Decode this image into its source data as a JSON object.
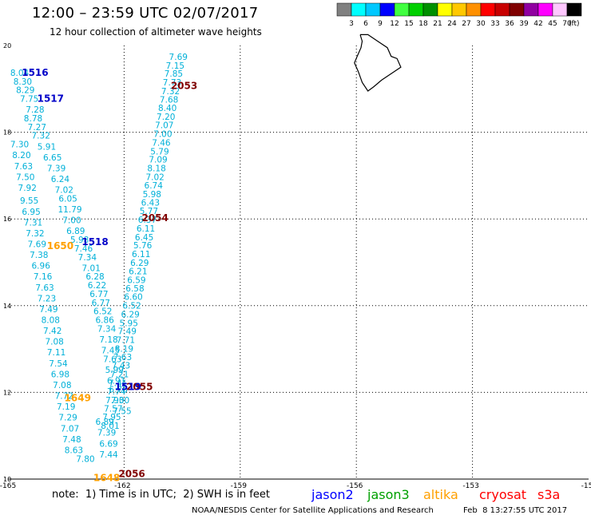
{
  "header": {
    "title": "12:00 – 23:59 UTC 02/07/2017",
    "subtitle": "12 hour collection of altimeter wave heights"
  },
  "legend": {
    "ticks": [
      "3",
      "6",
      "9",
      "12",
      "15",
      "18",
      "21",
      "24",
      "27",
      "30",
      "33",
      "36",
      "39",
      "42",
      "45",
      "70"
    ],
    "unit": "(ft)",
    "colors": [
      "#808080",
      "#00ffff",
      "#00c8ff",
      "#0000ff",
      "#40ff40",
      "#00d000",
      "#009000",
      "#ffff00",
      "#ffc800",
      "#ff9000",
      "#ff0000",
      "#c80000",
      "#800000",
      "#9000a0",
      "#ff00ff",
      "#ffc8ff",
      "#000000"
    ]
  },
  "axes": {
    "x_ticks": [
      "-165",
      "-162",
      "-159",
      "-156",
      "-153",
      "-15"
    ],
    "y_ticks": [
      "20",
      "18",
      "16",
      "14",
      "12",
      "10"
    ]
  },
  "map_data": {
    "lon_range": [
      -165,
      -150
    ],
    "lat_range": [
      10,
      20
    ],
    "track_color": "#00b0d8",
    "tracks": [
      {
        "name": "track-a",
        "points": [
          [
            -160.6,
            19.67,
            "7.69"
          ],
          [
            -160.68,
            19.47,
            "7.15"
          ],
          [
            -160.72,
            19.28,
            "7.85"
          ],
          [
            -160.76,
            19.08,
            "7.73"
          ],
          [
            -160.8,
            18.88,
            "7.32"
          ],
          [
            -160.84,
            18.68,
            "7.68"
          ],
          [
            -160.88,
            18.49,
            "8.40"
          ],
          [
            -160.92,
            18.29,
            "7.20"
          ],
          [
            -160.96,
            18.09,
            "7.07"
          ],
          [
            -161.0,
            17.89,
            "7.00"
          ],
          [
            -161.04,
            17.69,
            "7.46"
          ],
          [
            -161.08,
            17.49,
            "5.79"
          ],
          [
            -161.12,
            17.3,
            "7.09"
          ],
          [
            -161.16,
            17.1,
            "8.18"
          ],
          [
            -161.2,
            16.9,
            "7.02"
          ],
          [
            -161.24,
            16.7,
            "6.74"
          ],
          [
            -161.28,
            16.5,
            "5.98"
          ],
          [
            -161.32,
            16.31,
            "6.43"
          ],
          [
            -161.36,
            16.11,
            "5.77"
          ],
          [
            -161.4,
            15.91,
            "6.37"
          ],
          [
            -161.44,
            15.71,
            "6.11"
          ],
          [
            -161.48,
            15.51,
            "6.45"
          ],
          [
            -161.52,
            15.32,
            "5.76"
          ],
          [
            -161.56,
            15.12,
            "6.11"
          ],
          [
            -161.6,
            14.92,
            "6.29"
          ],
          [
            -161.64,
            14.72,
            "6.21"
          ],
          [
            -161.68,
            14.52,
            "6.59"
          ],
          [
            -161.72,
            14.33,
            "6.58"
          ],
          [
            -161.76,
            14.13,
            "6.60"
          ],
          [
            -161.8,
            13.93,
            "6.52"
          ],
          [
            -161.84,
            13.73,
            "6.29"
          ],
          [
            -161.88,
            13.53,
            "5.95"
          ],
          [
            -161.92,
            13.34,
            "7.49"
          ],
          [
            -161.96,
            13.14,
            "7.71"
          ],
          [
            -162.0,
            12.94,
            "8.19"
          ],
          [
            -162.04,
            12.74,
            "7.63"
          ],
          [
            -162.08,
            12.55,
            "7.43"
          ],
          [
            -162.12,
            12.35,
            "7.21"
          ],
          [
            -162.16,
            12.15,
            "7.41"
          ],
          [
            -162.2,
            11.95,
            "7.74"
          ],
          [
            -162.24,
            11.75,
            "7.93"
          ],
          [
            -162.28,
            11.56,
            "7.57"
          ],
          [
            -162.32,
            11.36,
            "7.95"
          ],
          [
            -162.36,
            11.16,
            "8.01"
          ]
        ]
      },
      {
        "name": "track-b",
        "points": [
          [
            -164.7,
            19.3,
            "8.04"
          ],
          [
            -164.62,
            19.1,
            "8.30"
          ],
          [
            -164.55,
            18.9,
            "8.29"
          ],
          [
            -164.45,
            18.7,
            "7.75"
          ],
          [
            -164.3,
            18.45,
            "7.28"
          ],
          [
            -164.35,
            18.25,
            "8.78"
          ],
          [
            -164.25,
            18.05,
            "7.27"
          ],
          [
            -164.15,
            17.85,
            "7.32"
          ],
          [
            -164.7,
            17.65,
            "7.30"
          ],
          [
            -164.0,
            17.6,
            "5.91"
          ],
          [
            -164.65,
            17.4,
            "8.20"
          ],
          [
            -163.85,
            17.35,
            "6.65"
          ],
          [
            -164.6,
            17.15,
            "7.63"
          ],
          [
            -163.75,
            17.1,
            "7.39"
          ],
          [
            -164.55,
            16.9,
            "7.50"
          ],
          [
            -163.65,
            16.85,
            "6.24"
          ],
          [
            -164.5,
            16.65,
            "7.92"
          ],
          [
            -163.55,
            16.6,
            "7.02"
          ],
          [
            -163.45,
            16.4,
            "6.05"
          ],
          [
            -164.45,
            16.35,
            "9.55"
          ],
          [
            -163.4,
            16.15,
            "11.79"
          ],
          [
            -164.4,
            16.1,
            "6.95"
          ],
          [
            -163.35,
            15.9,
            "7.00"
          ],
          [
            -164.35,
            15.85,
            "7.31"
          ],
          [
            -163.25,
            15.65,
            "6.89"
          ],
          [
            -164.3,
            15.6,
            "7.32"
          ],
          [
            -163.15,
            15.45,
            "5.98"
          ],
          [
            -164.25,
            15.35,
            "7.69"
          ],
          [
            -163.05,
            15.25,
            "7.46"
          ],
          [
            -164.2,
            15.1,
            "7.38"
          ],
          [
            -162.95,
            15.05,
            "7.34"
          ],
          [
            -164.15,
            14.85,
            "6.96"
          ],
          [
            -162.85,
            14.8,
            "7.01"
          ],
          [
            -164.1,
            14.6,
            "7.16"
          ],
          [
            -162.75,
            14.6,
            "6.28"
          ],
          [
            -164.05,
            14.35,
            "7.63"
          ],
          [
            -162.7,
            14.4,
            "6.22"
          ],
          [
            -164.0,
            14.1,
            "7.23"
          ],
          [
            -162.65,
            14.2,
            "6.77"
          ],
          [
            -163.95,
            13.85,
            "7.49"
          ],
          [
            -162.6,
            14.0,
            "6.77"
          ],
          [
            -163.9,
            13.6,
            "8.08"
          ],
          [
            -162.55,
            13.8,
            "6.52"
          ],
          [
            -163.85,
            13.35,
            "7.42"
          ],
          [
            -162.5,
            13.6,
            "6.86"
          ],
          [
            -163.8,
            13.1,
            "7.08"
          ],
          [
            -162.45,
            13.4,
            "7.34"
          ],
          [
            -163.75,
            12.85,
            "7.11"
          ],
          [
            -162.4,
            13.15,
            "7.18"
          ],
          [
            -163.7,
            12.6,
            "7.54"
          ],
          [
            -162.35,
            12.9,
            "7.45"
          ],
          [
            -163.65,
            12.35,
            "6.98"
          ],
          [
            -162.3,
            12.7,
            "7.63"
          ],
          [
            -163.6,
            12.1,
            "7.08"
          ],
          [
            -162.25,
            12.45,
            "5.99"
          ],
          [
            -163.55,
            11.85,
            "7.72"
          ],
          [
            -162.2,
            12.2,
            "6.91"
          ],
          [
            -163.5,
            11.6,
            "7.19"
          ],
          [
            -162.15,
            12.0,
            "6.78"
          ],
          [
            -163.45,
            11.35,
            "7.29"
          ],
          [
            -162.1,
            11.75,
            "7.00"
          ],
          [
            -163.4,
            11.1,
            "7.07"
          ],
          [
            -162.05,
            11.5,
            "7.55"
          ],
          [
            -163.35,
            10.85,
            "7.48"
          ],
          [
            -162.5,
            11.25,
            "6.89"
          ],
          [
            -163.3,
            10.6,
            "8.63"
          ],
          [
            -162.45,
            11.0,
            "7.39"
          ],
          [
            -163.0,
            10.4,
            "7.80"
          ],
          [
            -162.4,
            10.75,
            "6.69"
          ],
          [
            -162.4,
            10.5,
            "7.44"
          ]
        ]
      }
    ],
    "time_labels": [
      {
        "text": "2053",
        "lon": -160.45,
        "lat": 19.0,
        "color": "#800000"
      },
      {
        "text": "1516",
        "lon": -164.3,
        "lat": 19.3,
        "color": "#0000c8"
      },
      {
        "text": "1517",
        "lon": -163.9,
        "lat": 18.7,
        "color": "#0000c8"
      },
      {
        "text": "2054",
        "lon": -161.2,
        "lat": 15.95,
        "color": "#800000"
      },
      {
        "text": "1518",
        "lon": -162.75,
        "lat": 15.4,
        "color": "#0000c8"
      },
      {
        "text": "1650",
        "lon": -163.65,
        "lat": 15.3,
        "color": "#ffa000"
      },
      {
        "text": "2055",
        "lon": -161.6,
        "lat": 12.05,
        "color": "#800000"
      },
      {
        "text": "1519",
        "lon": -161.9,
        "lat": 12.05,
        "color": "#0000c8"
      },
      {
        "text": "1649",
        "lon": -163.2,
        "lat": 11.8,
        "color": "#ffa000"
      },
      {
        "text": "2056",
        "lon": -161.8,
        "lat": 10.05,
        "color": "#800000"
      },
      {
        "text": "1648",
        "lon": -162.45,
        "lat": 9.95,
        "color": "#ffa000"
      }
    ],
    "island_outline": [
      [
        -155.9,
        20.25
      ],
      [
        -155.85,
        20.1
      ],
      [
        -155.88,
        19.95
      ],
      [
        -155.98,
        19.75
      ],
      [
        -156.05,
        19.6
      ],
      [
        -155.95,
        19.4
      ],
      [
        -155.85,
        19.15
      ],
      [
        -155.7,
        18.95
      ],
      [
        -155.55,
        19.05
      ],
      [
        -155.35,
        19.2
      ],
      [
        -155.1,
        19.35
      ],
      [
        -154.85,
        19.5
      ],
      [
        -154.95,
        19.7
      ],
      [
        -155.1,
        19.75
      ],
      [
        -155.2,
        19.95
      ],
      [
        -155.45,
        20.1
      ],
      [
        -155.7,
        20.25
      ],
      [
        -155.9,
        20.25
      ]
    ]
  },
  "footer": {
    "note": "note:  1) Time is in UTC;  2) SWH is in feet",
    "source": "NOAA/NESDIS Center for Satellite Applications and Research",
    "timestamp": "Feb  8 13:27:55 UTC 2017",
    "satellites": [
      {
        "name": "jason2",
        "color": "#0000ff"
      },
      {
        "name": "jason3",
        "color": "#00a000"
      },
      {
        "name": "altika",
        "color": "#ffa000"
      },
      {
        "name": "cryosat",
        "color": "#ff0000"
      },
      {
        "name": "s3a",
        "color": "#ff0000"
      }
    ]
  }
}
